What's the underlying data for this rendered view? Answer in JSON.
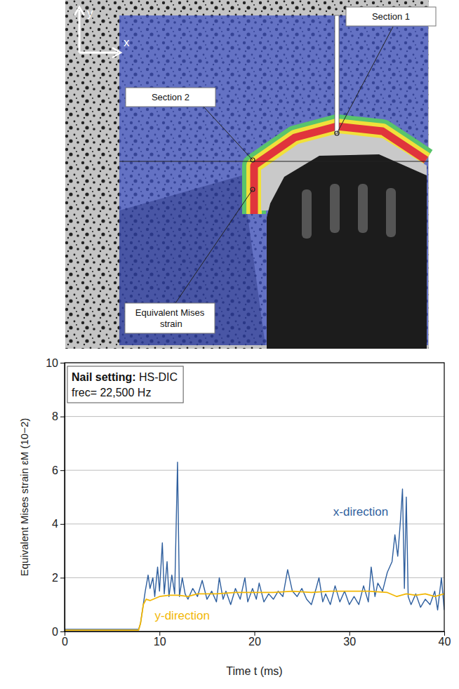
{
  "image": {
    "axis_labels": [
      "x",
      "y"
    ],
    "labels": [
      "Section 1",
      "Section 2",
      "Equivalent Mises strain"
    ]
  },
  "chart_data": {
    "type": "line",
    "xlabel": "Time t (ms)",
    "ylabel": "Equivalent Mises strain εM (10−2)",
    "annotation": [
      "Nail setting: HS-DIC",
      "frec= 22,500 Hz"
    ],
    "xlim": [
      0,
      40
    ],
    "xticks": [
      0,
      10,
      20,
      30,
      40
    ],
    "ylim": [
      0,
      10
    ],
    "yticks": [
      0,
      2,
      4,
      6,
      8,
      10
    ],
    "grid": true,
    "series": [
      {
        "name": "x-direction",
        "color": "#2f5f9e",
        "x": [
          0,
          2,
          4,
          6,
          7.8,
          8.0,
          8.5,
          8.8,
          9.0,
          9.3,
          9.5,
          9.8,
          10.0,
          10.3,
          10.5,
          10.8,
          11.0,
          11.3,
          11.6,
          11.9,
          12.1,
          12.4,
          12.7,
          13.0,
          13.5,
          14,
          14.5,
          15,
          15.5,
          16,
          16.3,
          16.7,
          17,
          17.5,
          18,
          18.5,
          19,
          19.3,
          19.8,
          20.2,
          20.5,
          21,
          21.5,
          22,
          22.5,
          23,
          23.5,
          24,
          24.5,
          25,
          25.5,
          26,
          26.5,
          26.8,
          27.2,
          27.5,
          28,
          28.5,
          29,
          29.5,
          30,
          30.5,
          31,
          31.5,
          32,
          32.3,
          32.7,
          33,
          33.5,
          34,
          34.5,
          34.8,
          35.1,
          35.4,
          35.6,
          35.8,
          36.0,
          36.2,
          36.5,
          37,
          37.5,
          38,
          38.5,
          39,
          39.3,
          39.7,
          40
        ],
        "values": [
          0.08,
          0.08,
          0.08,
          0.08,
          0.08,
          0.3,
          1.5,
          2.1,
          1.6,
          2.0,
          1.3,
          2.4,
          1.5,
          3.3,
          1.4,
          2.6,
          1.3,
          2.1,
          1.4,
          6.3,
          1.3,
          2.0,
          1.4,
          1.2,
          1.6,
          1.3,
          1.9,
          1.2,
          1.5,
          1.1,
          2.0,
          1.2,
          1.5,
          1.0,
          1.6,
          1.2,
          2.0,
          1.1,
          1.6,
          1.2,
          1.8,
          1.1,
          1.4,
          1.2,
          1.5,
          1.3,
          2.3,
          1.5,
          1.3,
          1.6,
          1.2,
          1.0,
          1.6,
          2.0,
          1.1,
          1.4,
          1.0,
          1.7,
          1.1,
          1.5,
          1.0,
          1.3,
          1.0,
          1.7,
          1.1,
          2.4,
          1.3,
          1.8,
          1.5,
          2.2,
          2.6,
          3.6,
          2.8,
          4.2,
          5.3,
          1.6,
          5.0,
          1.3,
          1.0,
          1.4,
          0.9,
          1.2,
          1.0,
          1.5,
          0.8,
          2.0,
          0.8
        ]
      },
      {
        "name": "y-direction",
        "color": "#f2b705",
        "x": [
          0,
          2,
          4,
          6,
          7.8,
          8.0,
          8.3,
          8.6,
          9,
          10,
          11,
          12,
          13,
          14,
          16,
          18,
          20,
          22,
          24,
          26,
          28,
          30,
          32,
          34,
          35,
          36,
          37,
          38,
          39,
          40
        ],
        "values": [
          0.05,
          0.05,
          0.05,
          0.05,
          0.05,
          0.3,
          1.0,
          1.2,
          1.15,
          1.3,
          1.35,
          1.35,
          1.3,
          1.4,
          1.4,
          1.45,
          1.45,
          1.45,
          1.5,
          1.45,
          1.5,
          1.5,
          1.5,
          1.45,
          1.3,
          1.4,
          1.35,
          1.4,
          1.3,
          1.4
        ]
      }
    ]
  }
}
